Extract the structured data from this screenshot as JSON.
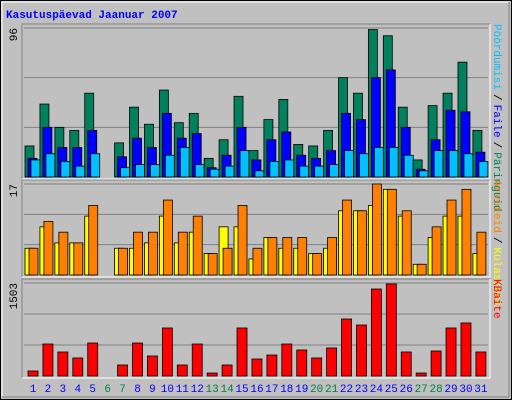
{
  "chart_data": [
    {
      "type": "bar",
      "title": "Kasutuspäevad Jaanuar 2007",
      "categories": [
        "1",
        "2",
        "3",
        "4",
        "5",
        "6",
        "7",
        "8",
        "9",
        "10",
        "11",
        "12",
        "13",
        "14",
        "15",
        "16",
        "17",
        "18",
        "19",
        "20",
        "21",
        "22",
        "23",
        "24",
        "25",
        "26",
        "27",
        "28",
        "29",
        "30",
        "31"
      ],
      "category_colors": [
        "#0000ff",
        "#0000ff",
        "#0000ff",
        "#0000ff",
        "#0000ff",
        "#008040",
        "#008040",
        "#0000ff",
        "#0000ff",
        "#0000ff",
        "#0000ff",
        "#0000ff",
        "#008040",
        "#008040",
        "#0000ff",
        "#0000ff",
        "#0000ff",
        "#0000ff",
        "#0000ff",
        "#008040",
        "#008040",
        "#0000ff",
        "#0000ff",
        "#0000ff",
        "#0000ff",
        "#0000ff",
        "#008040",
        "#008040",
        "#0000ff",
        "#0000ff",
        "#0000ff"
      ],
      "legend_separator": "/",
      "ylim": [
        0,
        96
      ],
      "yticks": [
        96
      ],
      "series": [
        {
          "name": "Päringuid",
          "color": "#00805c",
          "values": [
            20,
            47,
            32,
            30,
            54,
            0,
            22,
            45,
            34,
            56,
            35,
            41,
            12,
            24,
            52,
            17,
            37,
            50,
            21,
            20,
            30,
            64,
            54,
            95,
            91,
            45,
            11,
            46,
            54,
            74,
            30
          ]
        },
        {
          "name": "Faile",
          "color": "#0000ff",
          "values": [
            12,
            32,
            19,
            19,
            30,
            0,
            13,
            25,
            19,
            41,
            25,
            28,
            6,
            14,
            32,
            11,
            24,
            29,
            14,
            12,
            17,
            41,
            37,
            64,
            69,
            32,
            5,
            24,
            43,
            42,
            16
          ]
        },
        {
          "name": "Pöördumisi",
          "color": "#00c0ff",
          "values": [
            11,
            15,
            10,
            7,
            15,
            0,
            6,
            8,
            8,
            14,
            19,
            8,
            5,
            7,
            17,
            4,
            10,
            11,
            7,
            7,
            8,
            17,
            15,
            19,
            19,
            14,
            4,
            17,
            17,
            15,
            10
          ]
        }
      ]
    },
    {
      "type": "bar",
      "ylim": [
        0,
        17
      ],
      "yticks": [
        17
      ],
      "series": [
        {
          "name": "Külastusi",
          "color": "#ffff00",
          "values": [
            5,
            9,
            6,
            6,
            11,
            0,
            5,
            5,
            6,
            11,
            6,
            8,
            4,
            9,
            9,
            3,
            7,
            5,
            5,
            4,
            5,
            12,
            12,
            13,
            16,
            11,
            2,
            7,
            11,
            11,
            4
          ]
        },
        {
          "name": "Arvuteid",
          "color": "#ff8000",
          "values": [
            5,
            10,
            8,
            6,
            13,
            0,
            5,
            8,
            8,
            14,
            8,
            11,
            4,
            5,
            13,
            5,
            7,
            7,
            7,
            4,
            7,
            14,
            12,
            17,
            16,
            12,
            2,
            9,
            14,
            16,
            8
          ]
        }
      ]
    },
    {
      "type": "bar",
      "ylim": [
        0,
        1503
      ],
      "yticks": [
        1503
      ],
      "series": [
        {
          "name": "KBaite",
          "color": "#ff0000",
          "values": [
            81,
            517,
            388,
            291,
            533,
            0,
            178,
            533,
            323,
            776,
            178,
            517,
            48,
            178,
            776,
            275,
            339,
            517,
            420,
            291,
            453,
            921,
            824,
            1406,
            1487,
            388,
            48,
            404,
            776,
            857,
            388
          ]
        }
      ]
    }
  ]
}
